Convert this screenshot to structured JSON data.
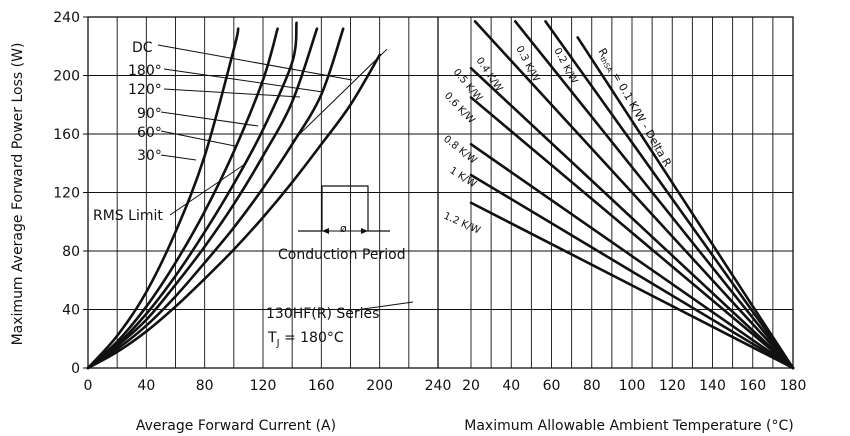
{
  "chart_data": [
    {
      "type": "line",
      "xlabel": "Average Forward Current (A)",
      "ylabel": "Maximum Average Forward Power Loss (W)",
      "xlim": [
        0,
        240
      ],
      "ylim": [
        0,
        240
      ],
      "xticks": [
        "0",
        "40",
        "80",
        "120",
        "160",
        "200",
        "240"
      ],
      "yticks": [
        "0",
        "40",
        "80",
        "120",
        "160",
        "200",
        "240"
      ],
      "grid": true,
      "series": [
        {
          "name": "30°",
          "x": [
            0,
            20,
            40,
            60,
            80,
            100,
            103
          ],
          "y": [
            0,
            22,
            52,
            93,
            145,
            218,
            232
          ]
        },
        {
          "name": "60°",
          "x": [
            0,
            20,
            40,
            60,
            80,
            100,
            120,
            130
          ],
          "y": [
            0,
            18,
            42,
            72,
            107,
            148,
            197,
            232
          ]
        },
        {
          "name": "90°",
          "x": [
            0,
            20,
            40,
            60,
            80,
            100,
            120,
            140,
            143
          ],
          "y": [
            0,
            16,
            37,
            63,
            93,
            126,
            163,
            209,
            236
          ]
        },
        {
          "name": "120°",
          "x": [
            0,
            20,
            40,
            60,
            80,
            100,
            120,
            140,
            157
          ],
          "y": [
            0,
            15,
            33,
            57,
            83,
            112,
            145,
            182,
            232
          ]
        },
        {
          "name": "180°",
          "x": [
            0,
            20,
            40,
            60,
            80,
            100,
            120,
            140,
            160,
            175
          ],
          "y": [
            0,
            13,
            29,
            49,
            72,
            96,
            123,
            153,
            187,
            232
          ]
        },
        {
          "name": "DC",
          "x": [
            0,
            20,
            40,
            60,
            80,
            100,
            120,
            140,
            160,
            180,
            200
          ],
          "y": [
            0,
            11,
            25,
            42,
            61,
            81,
            103,
            127,
            153,
            180,
            214
          ]
        }
      ],
      "rms_limit": {
        "x": [
          140,
          205
        ],
        "y": [
          155,
          218
        ]
      },
      "annotations": {
        "rms_limit": "RMS Limit",
        "conduction_period": "Conduction Period",
        "phi": "ø",
        "series_title": "130HF(R) Series",
        "tj_prefix": "T",
        "tj_sub": "J",
        "tj_value": " = 180°C"
      }
    },
    {
      "type": "line",
      "xlabel": "Maximum Allowable Ambient Temperature (°C)",
      "xlim": [
        20,
        180
      ],
      "ylim": [
        0,
        240
      ],
      "xticks": [
        "20",
        "40",
        "60",
        "80",
        "100",
        "120",
        "140",
        "160",
        "180"
      ],
      "grid": true,
      "converge_at": [
        180,
        0
      ],
      "series": [
        {
          "name": "R thSA = 0.1 K/W - Delta R",
          "start": [
            73,
            226
          ]
        },
        {
          "name": "0.2 K/W",
          "start": [
            57,
            237
          ]
        },
        {
          "name": "0.3 K/W",
          "start": [
            42,
            237
          ]
        },
        {
          "name": "0.4 K/W",
          "start": [
            22,
            237
          ]
        },
        {
          "name": "0.5 K/W",
          "start": [
            20,
            205
          ]
        },
        {
          "name": "0.6 K/W",
          "start": [
            20,
            185
          ]
        },
        {
          "name": "0.8 K/W",
          "start": [
            20,
            153
          ]
        },
        {
          "name": "1 K/W",
          "start": [
            20,
            132
          ]
        },
        {
          "name": "1.2 K/W",
          "start": [
            20,
            113
          ]
        }
      ],
      "rth_label": {
        "r": "R",
        "sub": "thSA",
        "rest": " = 0.1 K/W - Delta R"
      }
    }
  ]
}
